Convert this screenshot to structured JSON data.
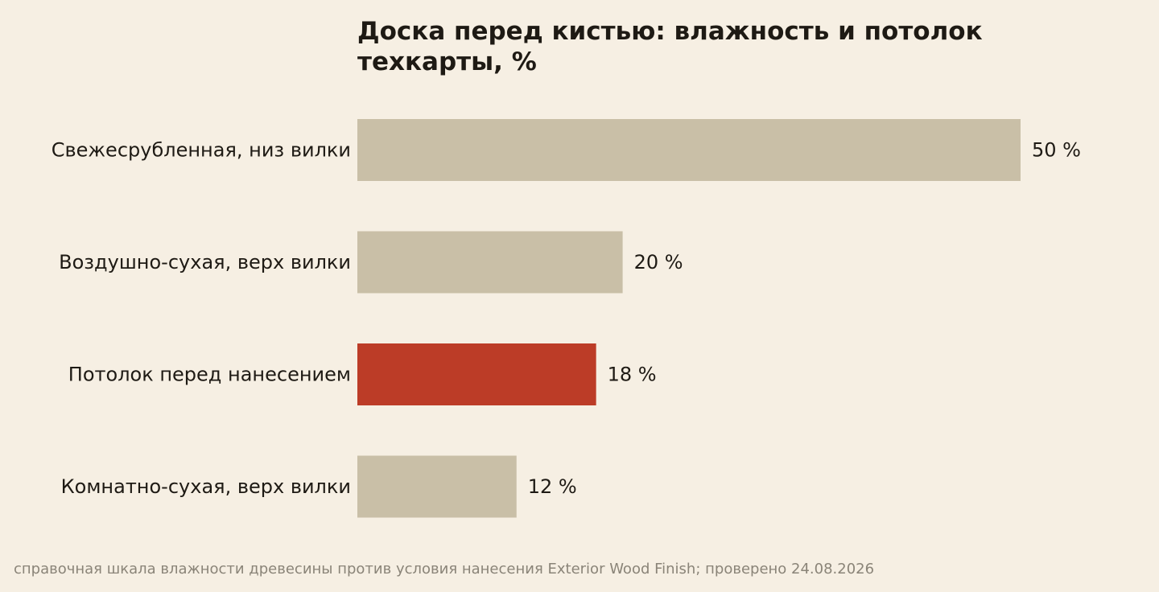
{
  "chart_data": {
    "type": "bar",
    "orientation": "horizontal",
    "title": "Доска перед кистью: влажность и потолок техкарты, %",
    "categories": [
      "Свежесрубленная, низ вилки",
      "Воздушно-сухая, верх вилки",
      "Потолок перед нанесением",
      "Комнатно-сухая, верх вилки"
    ],
    "values": [
      50,
      20,
      18,
      12
    ],
    "value_labels": [
      "50 %",
      "20 %",
      "18 %",
      "12 %"
    ],
    "unit": "%",
    "xlim": [
      0,
      50
    ],
    "grid": false,
    "legend": "none",
    "colors": {
      "default": "#c9bfa7",
      "highlight": "#bc3c27",
      "background": "#f6efe3",
      "text": "#1e1a14",
      "footnote": "#8a8478"
    },
    "highlight_index": 2
  },
  "footnote": "справочная шкала влажности древесины против условия нанесения Exterior Wood Finish; проверено 24.08.2026"
}
